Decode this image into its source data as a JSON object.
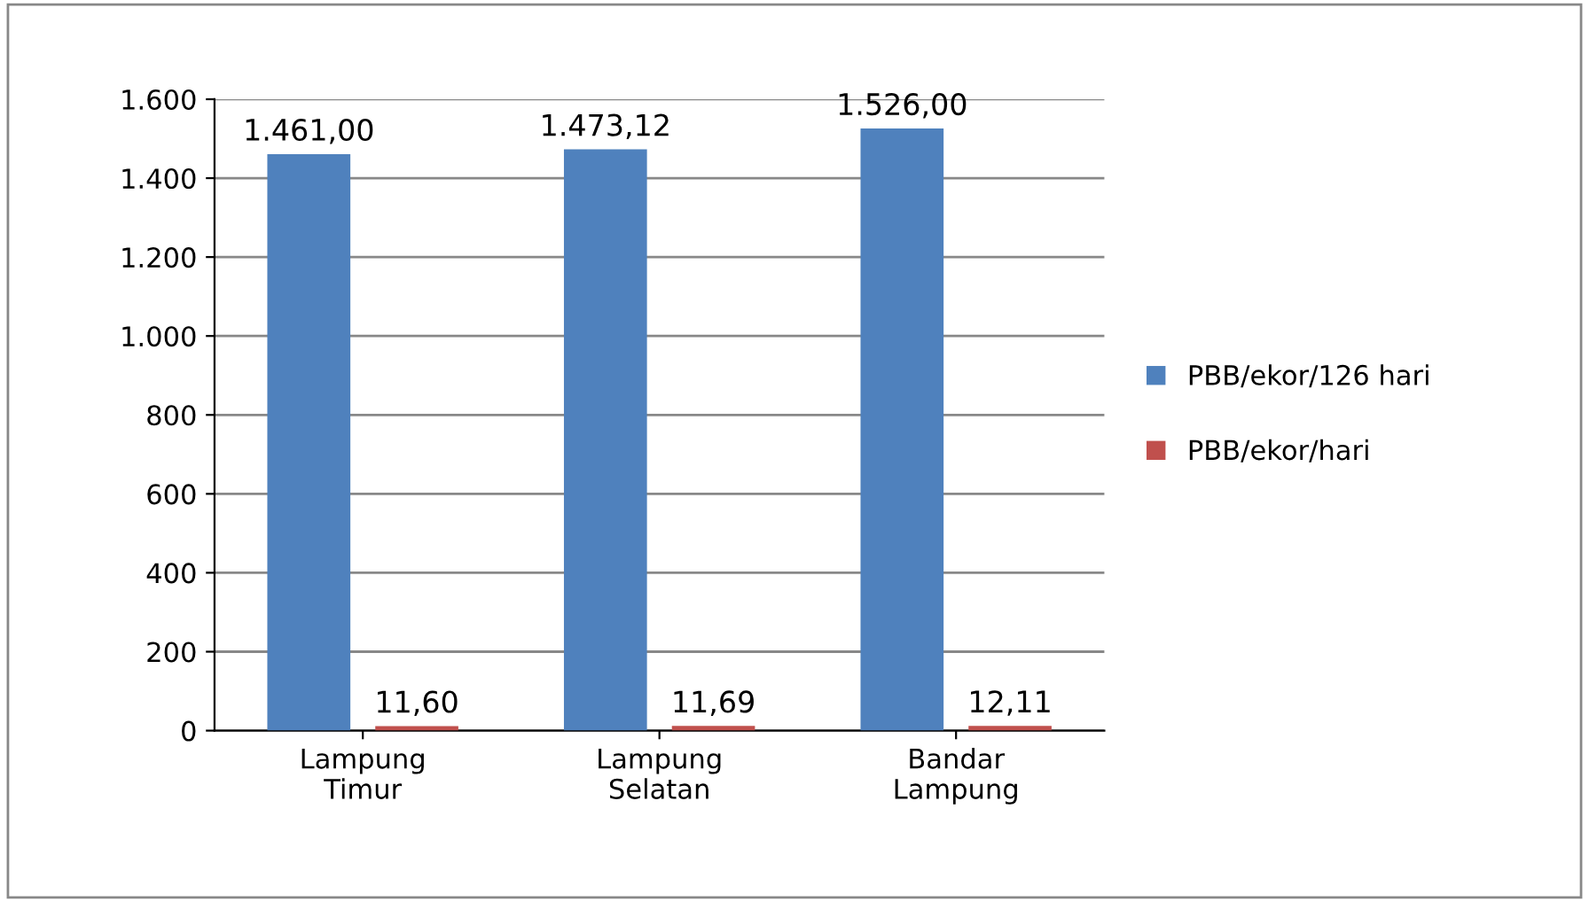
{
  "chart_data": {
    "type": "bar",
    "categories": [
      "Lampung\nTimur",
      "Lampung\nSelatan",
      "Bandar\nLampung"
    ],
    "series": [
      {
        "name": "PBB/ekor/126 hari",
        "color": "#4f81bd",
        "values": [
          1461.0,
          1473.12,
          1526.0
        ],
        "value_labels": [
          "1.461,00",
          "1.473,12",
          "1.526,00"
        ]
      },
      {
        "name": "PBB/ekor/hari",
        "color": "#c0504d",
        "values": [
          11.6,
          11.69,
          12.11
        ],
        "value_labels": [
          "11,60",
          "11,69",
          "12,11"
        ]
      }
    ],
    "ylim": [
      0,
      1600
    ],
    "yticks": [
      {
        "value": 0,
        "label": "0"
      },
      {
        "value": 200,
        "label": "200"
      },
      {
        "value": 400,
        "label": "400"
      },
      {
        "value": 600,
        "label": "600"
      },
      {
        "value": 800,
        "label": "800"
      },
      {
        "value": 1000,
        "label": "1.000"
      },
      {
        "value": 1200,
        "label": "1.200"
      },
      {
        "value": 1400,
        "label": "1.400"
      },
      {
        "value": 1600,
        "label": "1.600"
      }
    ],
    "grid": "y",
    "legend": "right"
  }
}
